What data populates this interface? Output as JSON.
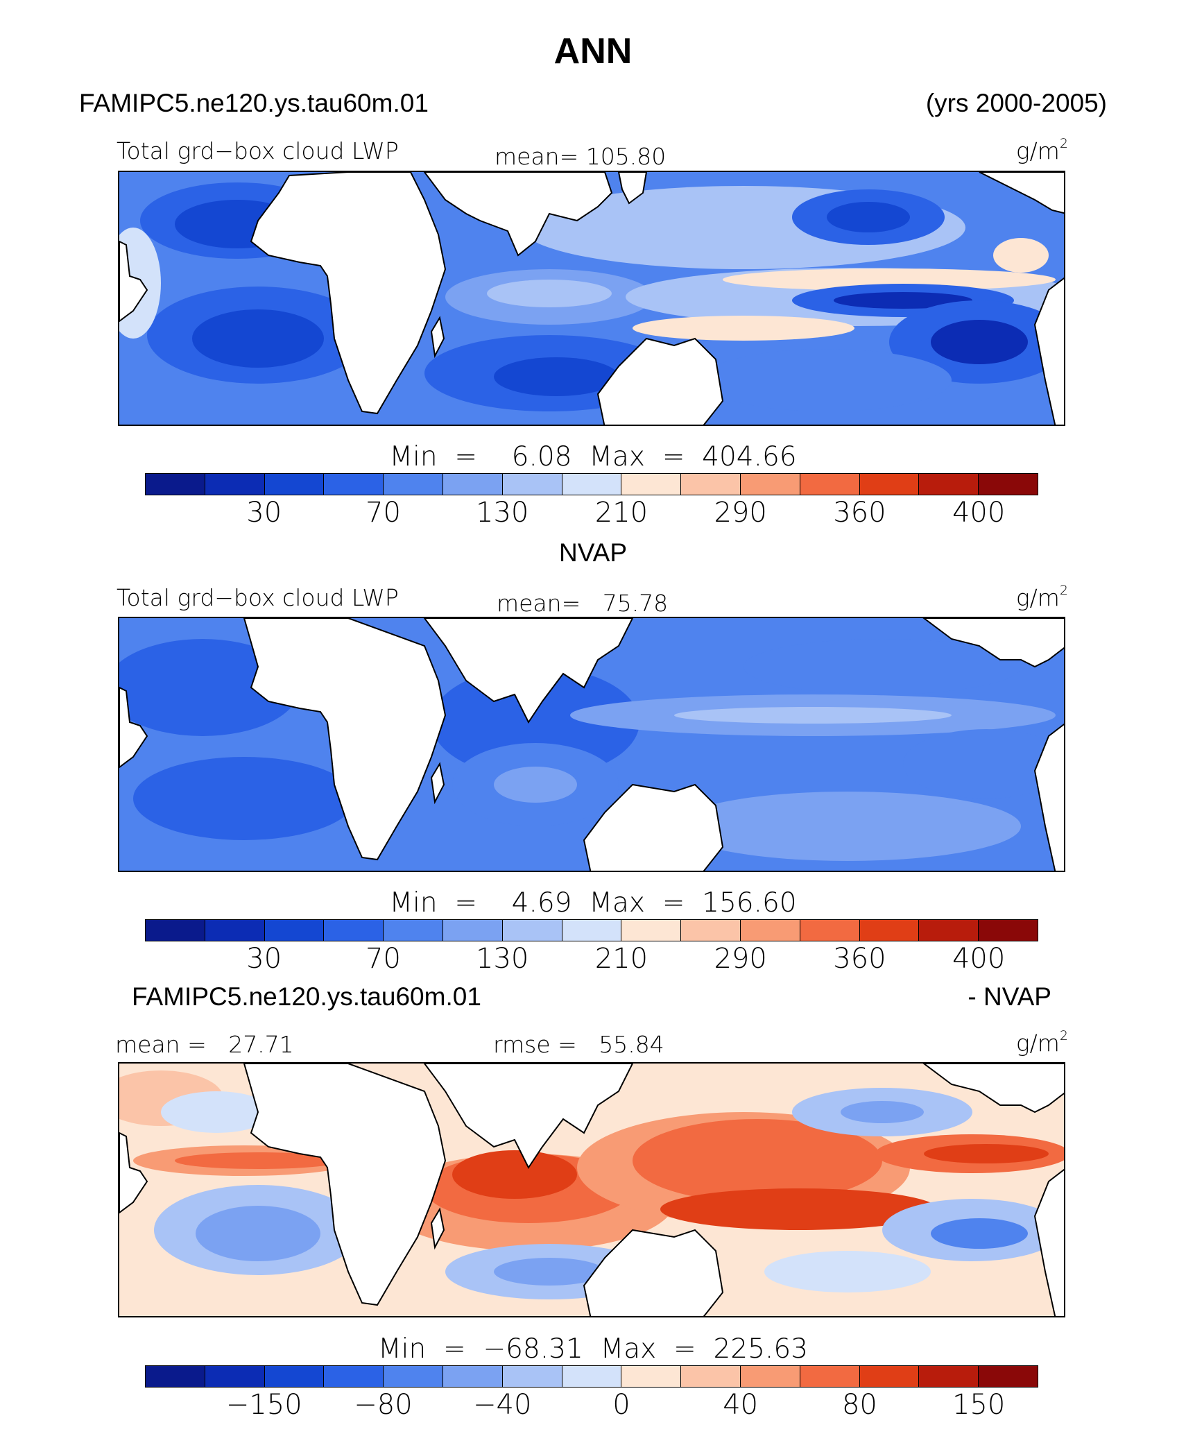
{
  "title": "ANN",
  "subtitle_left": "FAMIPC5.ne120.ys.tau60m.01",
  "subtitle_right": "(yrs 2000-2005)",
  "palette": [
    "#0a1a8c",
    "#0c2cb4",
    "#1447d2",
    "#2b62e6",
    "#4f83ee",
    "#7ba2f2",
    "#a9c3f6",
    "#d3e2fa",
    "#fde6d4",
    "#fbc4a8",
    "#f89b74",
    "#f26a41",
    "#e03e16",
    "#b81c0c",
    "#8a0808"
  ],
  "panels": [
    {
      "label_left": "Total grd−box cloud LWP",
      "label_center": "mean=  105.80",
      "unit": "g/m",
      "unit_sup": "2",
      "minmax": "Min  =    6.08  Max  =  404.66",
      "ticks": [
        "30",
        "70",
        "130",
        "210",
        "290",
        "360",
        "400"
      ]
    },
    {
      "heading": "NVAP",
      "label_left": "Total grd−box cloud LWP",
      "label_center": "mean=   75.78",
      "unit": "g/m",
      "unit_sup": "2",
      "minmax": "Min  =    4.69  Max  =  156.60",
      "ticks": [
        "30",
        "70",
        "130",
        "210",
        "290",
        "360",
        "400"
      ]
    },
    {
      "heading_left": "FAMIPC5.ne120.ys.tau60m.01",
      "heading_right": "- NVAP",
      "label_left": "mean =   27.71",
      "label_center": "rmse =   55.84",
      "unit": "g/m",
      "unit_sup": "2",
      "minmax": "Min  =  −68.31  Max  =  225.63",
      "ticks": [
        "−150",
        "−80",
        "−40",
        "0",
        "40",
        "80",
        "150"
      ]
    }
  ]
}
